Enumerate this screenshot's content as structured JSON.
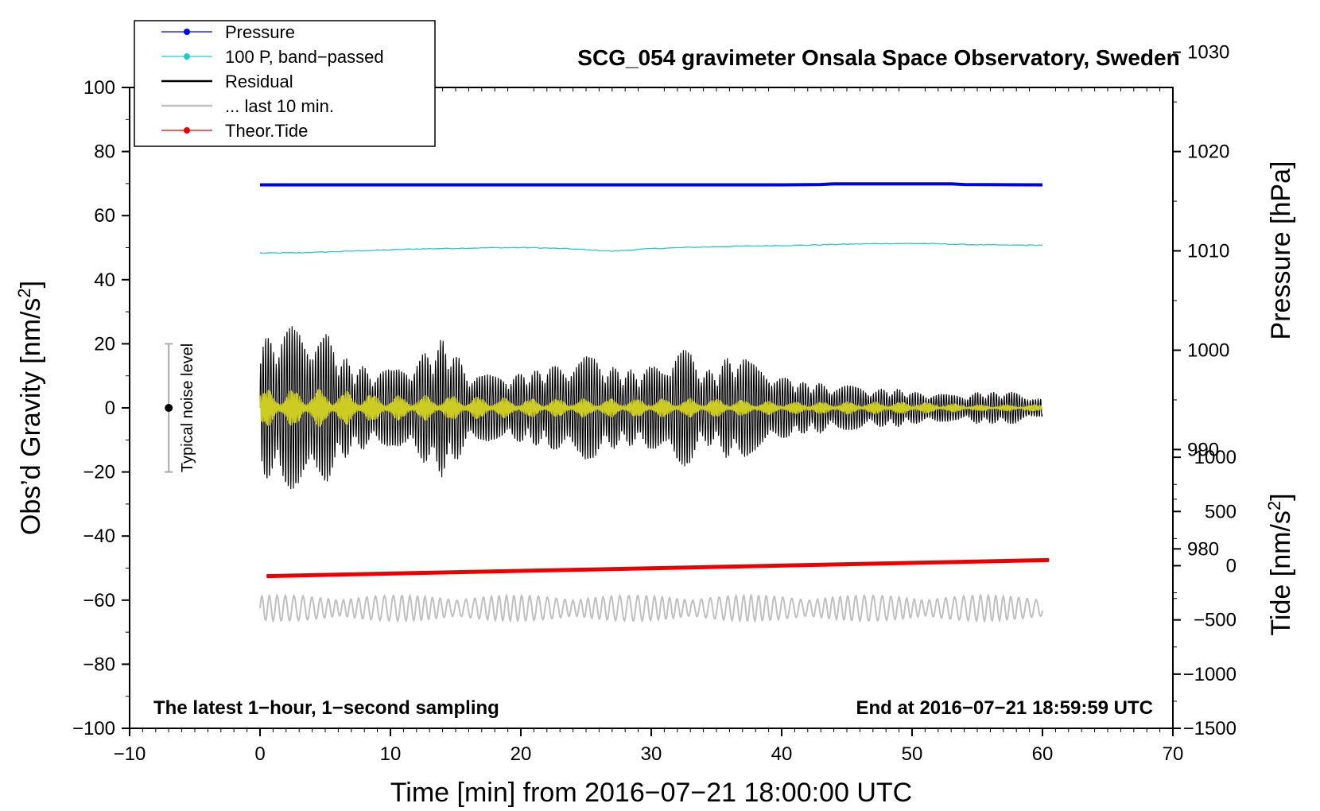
{
  "chart_data": {
    "type": "line",
    "title": "SCG_054 gravimeter Onsala Space Observatory, Sweden",
    "xlabel": "Time [min] from 2016−07−21 18:00:00 UTC",
    "ylabel_main": "Obs’d Gravity [nm/s",
    "ylabel_main_sup": "2",
    "ylabel_main_end": "]",
    "ylabel_pressure": "Pressure [hPa]",
    "ylabel_tide": "Tide [nm/s",
    "ylabel_tide_sup": "2",
    "ylabel_tide_end": "]",
    "xlim": [
      -10,
      70
    ],
    "ylim": [
      -100,
      100
    ],
    "x_ticks": [
      -10,
      0,
      10,
      20,
      30,
      40,
      50,
      60,
      70
    ],
    "x_tick_labels": [
      "−10",
      "0",
      "10",
      "20",
      "30",
      "40",
      "50",
      "60",
      "70"
    ],
    "y_ticks": [
      100,
      80,
      60,
      40,
      20,
      0,
      -20,
      -40,
      -60,
      -80,
      -100
    ],
    "y_tick_labels": [
      "100",
      "80",
      "60",
      "40",
      "20",
      "0",
      "−20",
      "−40",
      "−60",
      "−80",
      "−100"
    ],
    "pressure_axis": {
      "ticks": [
        1030,
        1020,
        1010,
        1000,
        990,
        980
      ],
      "tick_labels": [
        "1030",
        "1020",
        "1010",
        "1000",
        "990",
        "980"
      ],
      "y_at_80": 1020,
      "hpa_per_20": 10
    },
    "tide_axis": {
      "ticks": [
        1000,
        500,
        0,
        -500,
        -1000,
        -1500
      ],
      "tick_labels": [
        "1000",
        "500",
        "0",
        "−500",
        "−1000",
        "−1500"
      ],
      "y_at_minus100": -1500,
      "nms2_per_33_3": 500
    },
    "legend": {
      "position": "top-left",
      "entries": [
        {
          "label": "Pressure",
          "color": "#0000ee",
          "marker": true
        },
        {
          "label": "100 P, band−passed",
          "color": "#22cccc",
          "marker": true
        },
        {
          "label": "Residual",
          "color": "#000000",
          "marker": false
        },
        {
          "label": "... last 10 min.",
          "color": "#c0c0c0",
          "marker": false
        },
        {
          "label": "Theor.Tide",
          "color": "#ee0000",
          "marker": true
        }
      ]
    },
    "noise_level": {
      "label": "Typical noise level",
      "x": -7,
      "center": 0,
      "low": -20,
      "high": 20
    },
    "annotations": {
      "bottom_left": "The latest 1−hour, 1−second sampling",
      "bottom_right": "End at 2016−07−21 18:59:59 UTC"
    },
    "series": [
      {
        "name": "Pressure",
        "color": "#0000ee",
        "x": [
          0,
          10,
          20,
          30,
          40,
          43,
          44,
          48,
          53,
          54,
          60
        ],
        "y": [
          69.6,
          69.6,
          69.6,
          69.6,
          69.6,
          69.7,
          69.9,
          69.9,
          69.9,
          69.7,
          69.6
        ]
      },
      {
        "name": "100 P, band−passed",
        "color": "#22cccc",
        "x": [
          0,
          3,
          6,
          9,
          12,
          15,
          18,
          21,
          24,
          27,
          30,
          33,
          36,
          39,
          42,
          45,
          48,
          51,
          54,
          57,
          60
        ],
        "y": [
          48.3,
          48.4,
          48.8,
          49.2,
          49.6,
          49.8,
          50.0,
          50.0,
          49.6,
          48.9,
          49.7,
          50.1,
          50.4,
          50.6,
          50.8,
          51.1,
          51.3,
          51.3,
          51.0,
          50.8,
          50.8
        ]
      },
      {
        "name": "Residual",
        "color": "#000000",
        "x": [
          0,
          1,
          2,
          3,
          4,
          5,
          6,
          7,
          8,
          9,
          10,
          11,
          12,
          13,
          14,
          15,
          16,
          17,
          18,
          19,
          20,
          21,
          22,
          23,
          24,
          25,
          26,
          27,
          28,
          29,
          30,
          31,
          32,
          33,
          34,
          35,
          36,
          37,
          38,
          39,
          40,
          41,
          42,
          43,
          44,
          45,
          46,
          47,
          48,
          49,
          50,
          51,
          52,
          53,
          54,
          55,
          56,
          57,
          58,
          59,
          60
        ],
        "amplitude": [
          24,
          22,
          25,
          27,
          26,
          24,
          18,
          14,
          13,
          12,
          12,
          14,
          16,
          18,
          22,
          17,
          12,
          11,
          10,
          11,
          11,
          12,
          13,
          14,
          16,
          17,
          15,
          13,
          12,
          12,
          13,
          15,
          22,
          17,
          12,
          12,
          17,
          16,
          14,
          13,
          10,
          9,
          8,
          8,
          7,
          7,
          7,
          6,
          6,
          6,
          5,
          5,
          5,
          4,
          4,
          5,
          5,
          5,
          5,
          4,
          3
        ],
        "frequency_cycles_per_min": 5
      },
      {
        "name": "smoothed residual",
        "color": "#cccc22",
        "x": [
          0,
          5,
          10,
          15,
          20,
          25,
          30,
          35,
          40,
          45,
          50,
          55,
          60
        ],
        "amplitude": [
          6,
          6,
          4,
          4,
          3,
          3,
          3,
          3,
          2,
          2,
          2,
          1,
          1
        ],
        "offset": 0
      },
      {
        "name": "... last 10 min.",
        "color": "#c0c0c0",
        "x": [
          0,
          60
        ],
        "center": -62.5,
        "amplitude": 4,
        "frequency_cycles_per_min": 1.6
      },
      {
        "name": "Theor.Tide",
        "color": "#ee0000",
        "x": [
          0.5,
          60.5
        ],
        "y": [
          -52.5,
          -47.5
        ]
      }
    ]
  }
}
